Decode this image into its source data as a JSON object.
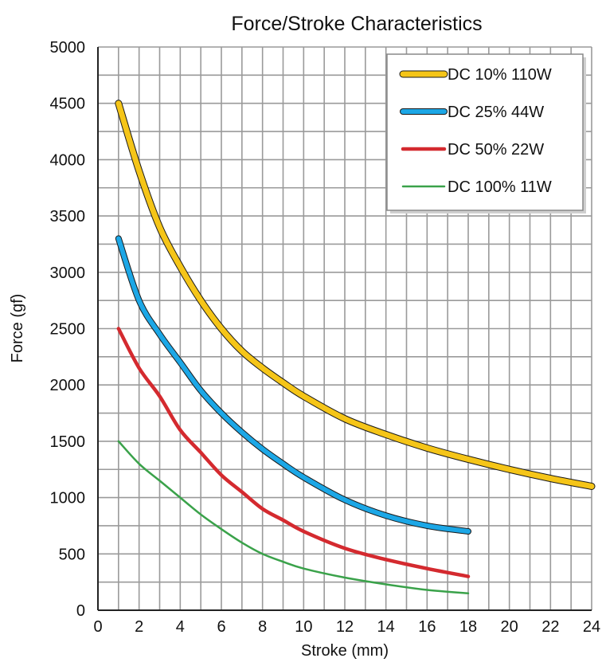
{
  "chart_data": {
    "type": "line",
    "title": "Force/Stroke Characteristics",
    "xlabel": "Stroke (mm)",
    "ylabel": "Force (gf)",
    "xlim": [
      0,
      24
    ],
    "ylim": [
      0,
      5000
    ],
    "x_ticks": [
      0,
      2,
      4,
      6,
      8,
      10,
      12,
      14,
      16,
      18,
      20,
      22,
      24
    ],
    "y_ticks": [
      0,
      500,
      1000,
      1500,
      2000,
      2500,
      3000,
      3500,
      4000,
      4500,
      5000
    ],
    "x_minor_step": 1,
    "y_minor_step": 250,
    "grid": true,
    "legend_position": "top-right",
    "series": [
      {
        "name": "DC 10% 110W",
        "color": "#f5c518",
        "outline": true,
        "x": [
          1,
          2,
          3,
          4,
          5,
          6,
          7,
          8,
          9,
          10,
          12,
          14,
          16,
          18,
          20,
          22,
          24
        ],
        "y": [
          4500,
          3900,
          3400,
          3050,
          2750,
          2500,
          2300,
          2150,
          2020,
          1900,
          1700,
          1560,
          1440,
          1340,
          1250,
          1170,
          1100
        ]
      },
      {
        "name": "DC 25% 44W",
        "color": "#1ca7e6",
        "outline": true,
        "x": [
          1,
          2,
          3,
          4,
          5,
          6,
          7,
          8,
          9,
          10,
          12,
          14,
          16,
          18
        ],
        "y": [
          3300,
          2750,
          2450,
          2200,
          1950,
          1750,
          1580,
          1430,
          1300,
          1180,
          980,
          840,
          750,
          700
        ]
      },
      {
        "name": "DC 50% 22W",
        "color": "#d42a2f",
        "outline": false,
        "x": [
          1,
          2,
          3,
          4,
          5,
          6,
          7,
          8,
          9,
          10,
          12,
          14,
          16,
          18
        ],
        "y": [
          2500,
          2150,
          1900,
          1600,
          1400,
          1200,
          1050,
          900,
          800,
          700,
          550,
          450,
          370,
          300
        ]
      },
      {
        "name": "DC 100% 11W",
        "color": "#3aa24a",
        "outline": false,
        "x": [
          1,
          2,
          3,
          4,
          5,
          6,
          7,
          8,
          9,
          10,
          12,
          14,
          16,
          18
        ],
        "y": [
          1500,
          1300,
          1150,
          1000,
          850,
          720,
          600,
          500,
          430,
          370,
          290,
          230,
          180,
          150
        ]
      }
    ]
  }
}
